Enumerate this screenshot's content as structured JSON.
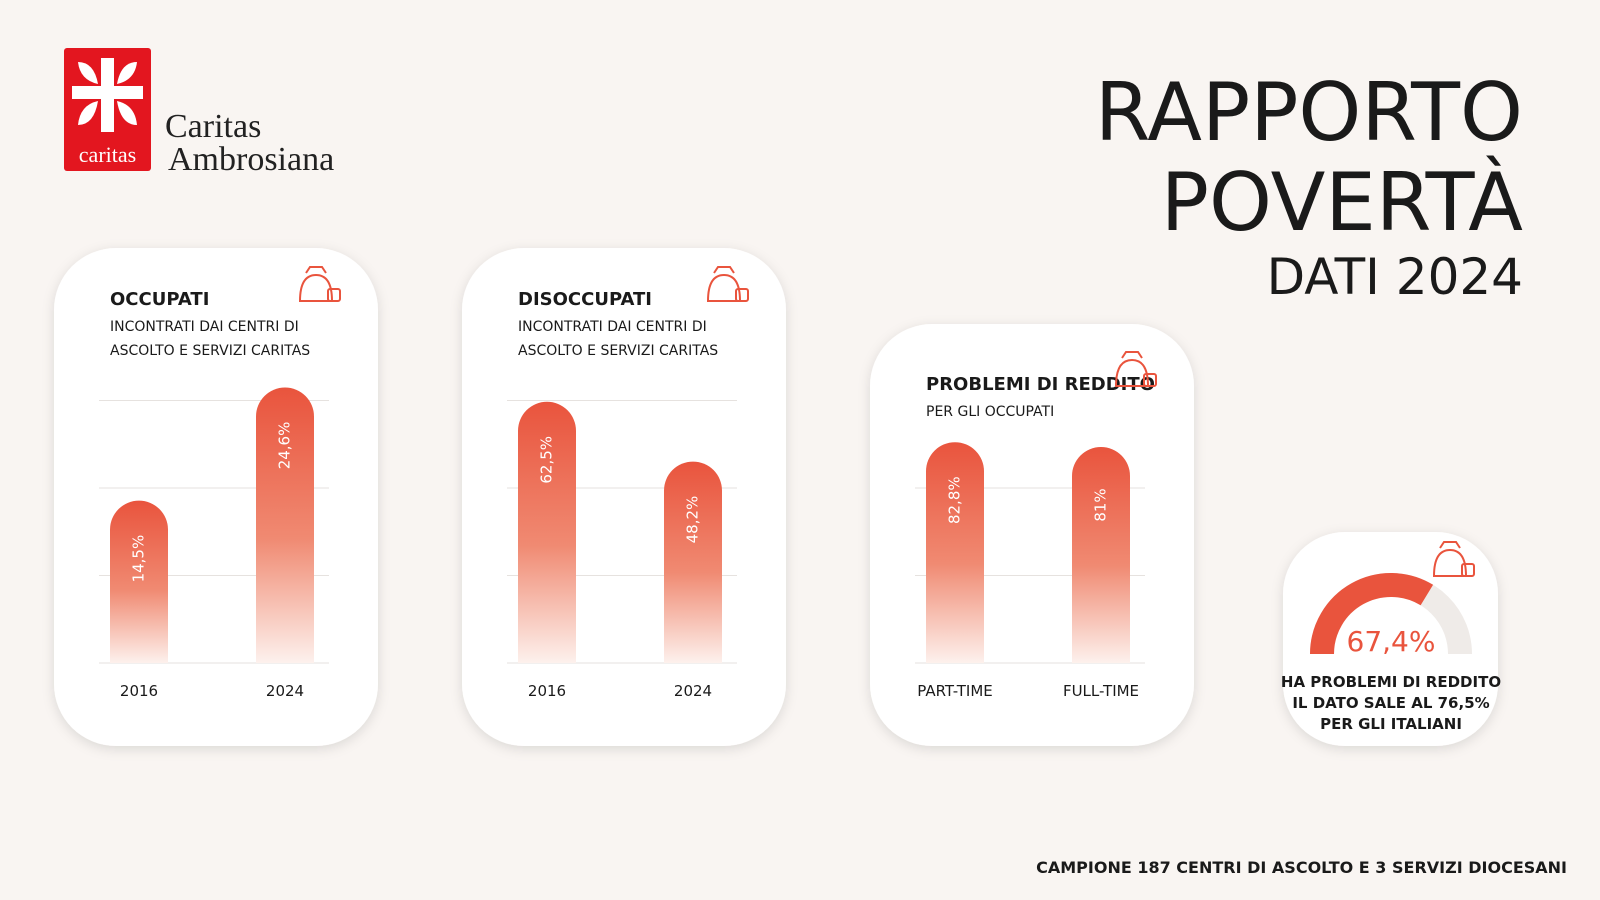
{
  "logo": {
    "mark": "caritas",
    "name_line1": "Caritas",
    "name_line2": "Ambrosiana"
  },
  "header": {
    "title_line1": "RAPPORTO",
    "title_line2": "POVERTÀ",
    "subtitle": "DATI 2024"
  },
  "chart_data": [
    {
      "type": "bar",
      "title": "OCCUPATI",
      "subtitle": [
        "INCONTRATI DAI CENTRI DI",
        "ASCOLTO E SERVIZI CARITAS"
      ],
      "categories": [
        "2016",
        "2024"
      ],
      "values": [
        14.5,
        24.6
      ],
      "value_labels": [
        "14,5%",
        "24,6%"
      ],
      "ylim": [
        0,
        25
      ],
      "color": "#e9543d",
      "grid": true
    },
    {
      "type": "bar",
      "title": "DISOCCUPATI",
      "subtitle": [
        "INCONTRATI DAI CENTRI DI",
        "ASCOLTO E SERVIZI CARITAS"
      ],
      "categories": [
        "2016",
        "2024"
      ],
      "values": [
        62.5,
        48.2
      ],
      "value_labels": [
        "62,5%",
        "48,2%"
      ],
      "ylim": [
        0,
        67
      ],
      "color": "#e9543d",
      "grid": true
    },
    {
      "type": "bar",
      "title": "PROBLEMI DI REDDITO",
      "subtitle": [
        "PER GLI OCCUPATI"
      ],
      "categories": [
        "PART-TIME",
        "FULL-TIME"
      ],
      "values": [
        82.8,
        81
      ],
      "value_labels": [
        "82,8%",
        "81%"
      ],
      "ylim": [
        0,
        105
      ],
      "color": "#e9543d",
      "grid": true
    },
    {
      "type": "gauge",
      "value": 67.4,
      "value_label": "67,4%",
      "ylim": [
        0,
        100
      ],
      "color": "#e9543d",
      "caption": [
        "HA PROBLEMI DI REDDITO",
        "IL DATO SALE AL 76,5%",
        "PER GLI ITALIANI"
      ]
    }
  ],
  "footer": "CAMPIONE 187 CENTRI DI ASCOLTO E 3 SERVIZI DIOCESANI"
}
